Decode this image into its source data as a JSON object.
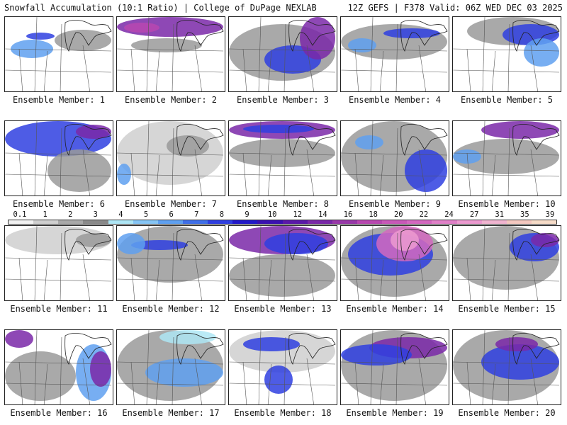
{
  "header": {
    "left": "Snowfall Accumulation (10:1 Ratio) | College of DuPage NEXLAB",
    "right": "12Z GEFS | F378 Valid: 06Z WED DEC 03 2025"
  },
  "colorbar": {
    "labels": [
      "0.1",
      "1",
      "2",
      "3",
      "4",
      "5",
      "6",
      "7",
      "8",
      "9",
      "10",
      "12",
      "14",
      "16",
      "18",
      "20",
      "22",
      "24",
      "27",
      "31",
      "35",
      "39"
    ],
    "colors": [
      "#f2f2f2",
      "#cfcfcf",
      "#a9a9a9",
      "#8a8a8a",
      "#aee6f5",
      "#86c5f5",
      "#5fa0f0",
      "#3f6fe8",
      "#2f3fe0",
      "#2218c8",
      "#3a10b0",
      "#5a18a8",
      "#7a28a8",
      "#9838a8",
      "#b848b0",
      "#c858b8",
      "#d468c0",
      "#e080c8",
      "#ec9ad0",
      "#f0b4d0",
      "#f4c8c0",
      "#f6dcc8"
    ]
  },
  "panels": [
    {
      "label": "Ensemble Member: 1"
    },
    {
      "label": "Ensemble Member: 2"
    },
    {
      "label": "Ensemble Member: 3"
    },
    {
      "label": "Ensemble Member: 4"
    },
    {
      "label": "Ensemble Member: 5"
    },
    {
      "label": "Ensemble Member: 6"
    },
    {
      "label": "Ensemble Member: 7"
    },
    {
      "label": "Ensemble Member: 8"
    },
    {
      "label": "Ensemble Member: 9"
    },
    {
      "label": "Ensemble Member: 10"
    },
    {
      "label": "Ensemble Member: 11"
    },
    {
      "label": "Ensemble Member: 12"
    },
    {
      "label": "Ensemble Member: 13"
    },
    {
      "label": "Ensemble Member: 14"
    },
    {
      "label": "Ensemble Member: 15"
    },
    {
      "label": "Ensemble Member: 16"
    },
    {
      "label": "Ensemble Member: 17"
    },
    {
      "label": "Ensemble Member: 18"
    },
    {
      "label": "Ensemble Member: 19"
    },
    {
      "label": "Ensemble Member: 20"
    }
  ]
}
